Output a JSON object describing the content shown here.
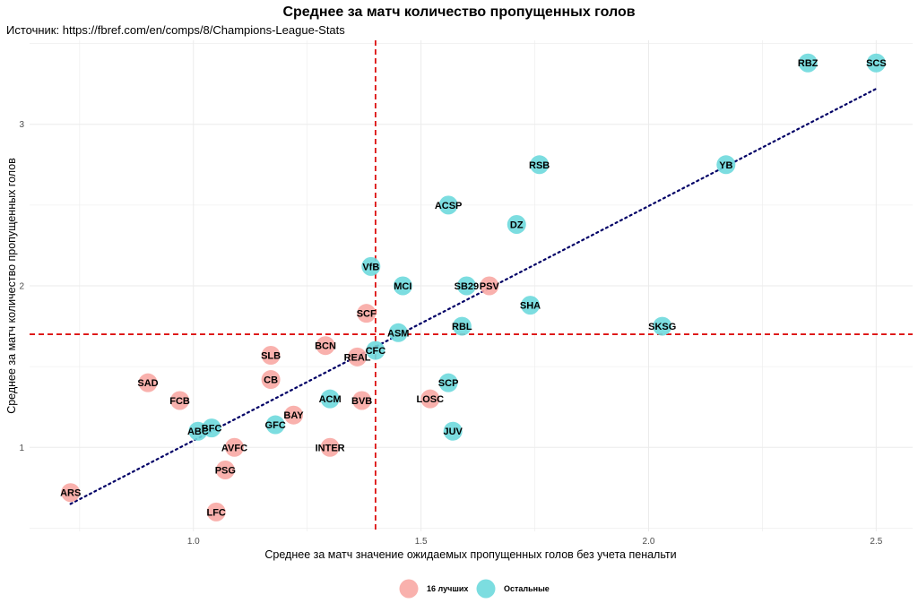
{
  "header": {
    "title": "Среднее за матч количество пропущенных голов",
    "subtitle": "Источник: https://fbref.com/en/comps/8/Champions-League-Stats"
  },
  "colors": {
    "top16": "#F8A9A4",
    "others": "#6ED9DD",
    "trend": "#000066",
    "ref_line": "#DD1111",
    "grid": "#EBEBEB"
  },
  "chart_data": {
    "type": "scatter",
    "xlabel": "Среднее за матч значение ожидаемых пропущенных голов без учета пенальти",
    "ylabel": "Среднее за матч количество пропущенных голов",
    "xlim": [
      0.64,
      2.58
    ],
    "ylim": [
      0.48,
      3.52
    ],
    "x_ticks": [
      1.0,
      1.5,
      2.0,
      2.5
    ],
    "x_tick_labels": [
      "1.0",
      "1.5",
      "2.0",
      "2.5"
    ],
    "y_ticks": [
      1,
      2,
      3
    ],
    "y_tick_labels": [
      "1",
      "2",
      "3"
    ],
    "grid": true,
    "vline": 1.4,
    "hline": 1.7,
    "trendline": [
      [
        0.73,
        0.65
      ],
      [
        2.5,
        3.22
      ]
    ],
    "legend": {
      "position": "bottom",
      "entries": [
        {
          "key": "top16",
          "label": "16 лучших"
        },
        {
          "key": "others",
          "label": "Остальные"
        }
      ]
    },
    "series": [
      {
        "key": "top16",
        "name": "16 лучших",
        "points": [
          {
            "label": "ARS",
            "x": 0.73,
            "y": 0.72
          },
          {
            "label": "SAD",
            "x": 0.9,
            "y": 1.4
          },
          {
            "label": "FCB",
            "x": 0.97,
            "y": 1.29
          },
          {
            "label": "PSG",
            "x": 1.07,
            "y": 0.86
          },
          {
            "label": "LFC",
            "x": 1.05,
            "y": 0.6
          },
          {
            "label": "AVFC",
            "x": 1.09,
            "y": 1.0
          },
          {
            "label": "SLB",
            "x": 1.17,
            "y": 1.57
          },
          {
            "label": "CB",
            "x": 1.17,
            "y": 1.42
          },
          {
            "label": "BAY",
            "x": 1.22,
            "y": 1.2
          },
          {
            "label": "BCN",
            "x": 1.29,
            "y": 1.63
          },
          {
            "label": "REAL",
            "x": 1.36,
            "y": 1.56
          },
          {
            "label": "BVB",
            "x": 1.37,
            "y": 1.29
          },
          {
            "label": "INTER",
            "x": 1.3,
            "y": 1.0
          },
          {
            "label": "SCF",
            "x": 1.38,
            "y": 1.83
          },
          {
            "label": "LOSC",
            "x": 1.52,
            "y": 1.3
          },
          {
            "label": "PSV",
            "x": 1.65,
            "y": 2.0
          }
        ]
      },
      {
        "key": "others",
        "name": "Остальные",
        "points": [
          {
            "label": "ABC",
            "x": 1.01,
            "y": 1.1
          },
          {
            "label": "BFC",
            "x": 1.04,
            "y": 1.12
          },
          {
            "label": "GFC",
            "x": 1.18,
            "y": 1.14
          },
          {
            "label": "ACM",
            "x": 1.3,
            "y": 1.3
          },
          {
            "label": "CFC",
            "x": 1.4,
            "y": 1.6
          },
          {
            "label": "ASM",
            "x": 1.45,
            "y": 1.71
          },
          {
            "label": "VfB",
            "x": 1.39,
            "y": 2.12
          },
          {
            "label": "MCI",
            "x": 1.46,
            "y": 2.0
          },
          {
            "label": "SB29",
            "x": 1.6,
            "y": 2.0
          },
          {
            "label": "RBL",
            "x": 1.59,
            "y": 1.75
          },
          {
            "label": "SCP",
            "x": 1.56,
            "y": 1.4
          },
          {
            "label": "JUV",
            "x": 1.57,
            "y": 1.1
          },
          {
            "label": "ACSP",
            "x": 1.56,
            "y": 2.5
          },
          {
            "label": "DZ",
            "x": 1.71,
            "y": 2.38
          },
          {
            "label": "RSB",
            "x": 1.76,
            "y": 2.75
          },
          {
            "label": "SHA",
            "x": 1.74,
            "y": 1.88
          },
          {
            "label": "SKSG",
            "x": 2.03,
            "y": 1.75
          },
          {
            "label": "YB",
            "x": 2.17,
            "y": 2.75
          },
          {
            "label": "RBZ",
            "x": 2.35,
            "y": 3.38
          },
          {
            "label": "SCS",
            "x": 2.5,
            "y": 3.38
          }
        ]
      }
    ]
  }
}
